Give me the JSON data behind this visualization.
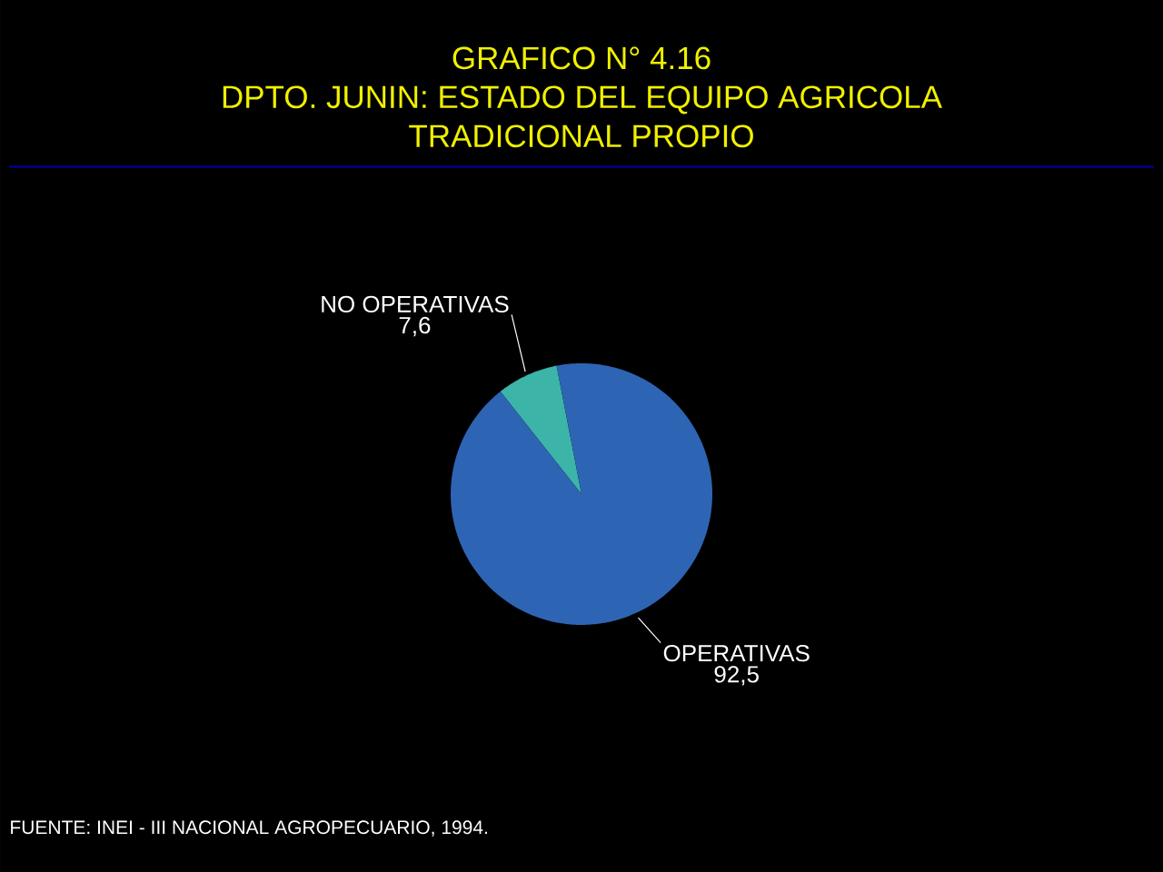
{
  "chart_data": {
    "type": "pie",
    "title": "GRAFICO N° 4.16",
    "subtitle": "DPTO. JUNIN: ESTADO DEL EQUIPO AGRICOLA TRADICIONAL PROPIO",
    "categories": [
      "NO OPERATIVAS",
      "OPERATIVAS"
    ],
    "values": [
      7.6,
      92.5
    ],
    "value_labels": [
      "7,6",
      "92,5"
    ],
    "colors": [
      "#3cb4a8",
      "#2e64b4"
    ],
    "annotations": [
      "FUENTE: INEI - III NACIONAL AGROPECUARIO, 1994."
    ]
  }
}
